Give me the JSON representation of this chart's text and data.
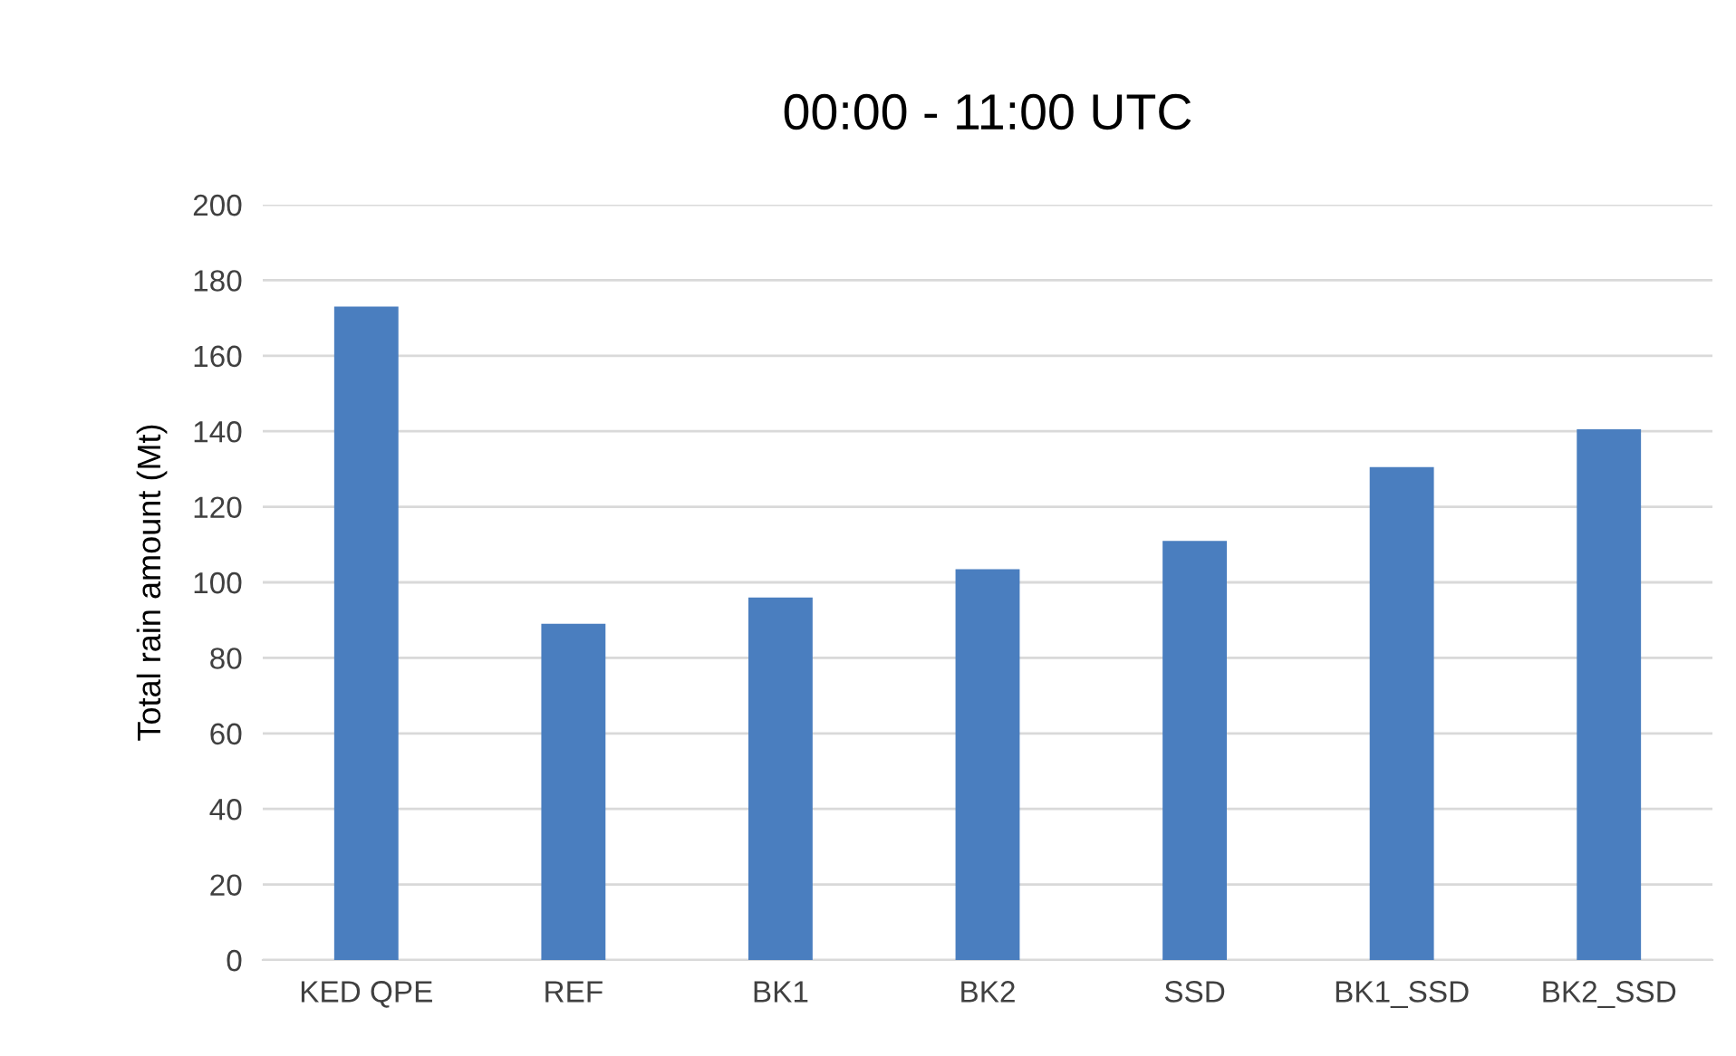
{
  "chart_data": {
    "type": "bar",
    "title": "00:00 - 11:00 UTC",
    "ylabel": "Total rain amount (Mt)",
    "categories": [
      "KED QPE",
      "REF",
      "BK1",
      "BK2",
      "SSD",
      "BK1_SSD",
      "BK2_SSD"
    ],
    "values": [
      173,
      89,
      96,
      103.5,
      111,
      130.5,
      140.5
    ],
    "color": "#4a7ebf",
    "ylim": [
      0,
      200
    ],
    "yticks": [
      0,
      20,
      40,
      60,
      80,
      100,
      120,
      140,
      160,
      180,
      200
    ],
    "grid": "y",
    "legend": false
  }
}
